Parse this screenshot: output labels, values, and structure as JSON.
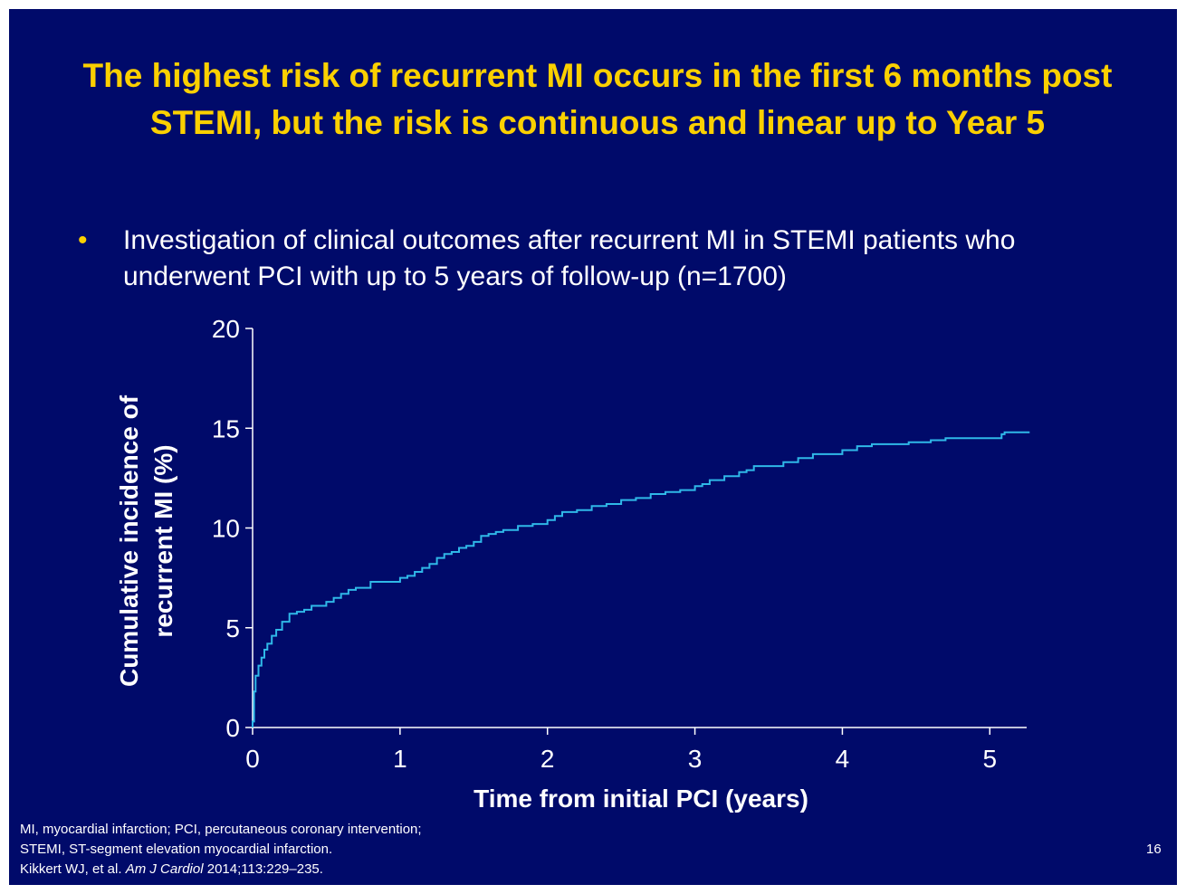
{
  "slide": {
    "title": "The highest risk of recurrent MI occurs in the first 6 months post STEMI, but the risk is continuous and linear up to Year 5",
    "bullet_symbol": "•",
    "bullet_text": "Investigation of clinical outcomes after recurrent MI in STEMI patients who underwent PCI with up to 5 years of follow-up (n=1700)",
    "footnote_line1": "MI, myocardial infarction; PCI, percutaneous coronary intervention;",
    "footnote_line2": "STEMI, ST-segment elevation myocardial infarction.",
    "citation_authors": "Kikkert WJ, et al.",
    "citation_journal": "Am J Cardiol",
    "citation_details": "2014;113:229–235.",
    "page_number": "16"
  },
  "colors": {
    "background": "#000a6a",
    "title": "#fbd000",
    "text": "#ffffff",
    "curve": "#2fb8e8"
  },
  "chart_data": {
    "type": "line",
    "step": true,
    "xlabel": "Time from initial PCI (years)",
    "ylabel_line1": "Cumulative incidence of",
    "ylabel_line2": "recurrent MI (%)",
    "xlim": [
      0,
      5.25
    ],
    "ylim": [
      0,
      20
    ],
    "xticks": [
      0,
      1,
      2,
      3,
      4,
      5
    ],
    "yticks": [
      0,
      5,
      10,
      15,
      20
    ],
    "grid": false,
    "series": [
      {
        "x": [
          0,
          0.01,
          0.02,
          0.04,
          0.06,
          0.08,
          0.1,
          0.13,
          0.16,
          0.2,
          0.25,
          0.3,
          0.35,
          0.4,
          0.5,
          0.55,
          0.6,
          0.65,
          0.7,
          0.75,
          0.8,
          0.9,
          1.0,
          1.05,
          1.1,
          1.15,
          1.2,
          1.25,
          1.3,
          1.35,
          1.4,
          1.45,
          1.5,
          1.55,
          1.6,
          1.65,
          1.7,
          1.8,
          1.9,
          2.0,
          2.05,
          2.1,
          2.2,
          2.3,
          2.4,
          2.5,
          2.6,
          2.7,
          2.8,
          2.9,
          3.0,
          3.05,
          3.1,
          3.2,
          3.3,
          3.35,
          3.4,
          3.5,
          3.6,
          3.7,
          3.8,
          3.9,
          4.0,
          4.1,
          4.2,
          4.3,
          4.45,
          4.6,
          4.7,
          4.8,
          4.9,
          5.0,
          5.08,
          5.1,
          5.15,
          5.27
        ],
        "y": [
          0.3,
          1.8,
          2.6,
          3.1,
          3.5,
          3.9,
          4.2,
          4.6,
          4.9,
          5.3,
          5.7,
          5.8,
          5.9,
          6.1,
          6.3,
          6.5,
          6.7,
          6.9,
          7.0,
          7.0,
          7.3,
          7.3,
          7.5,
          7.6,
          7.8,
          8.0,
          8.2,
          8.5,
          8.7,
          8.8,
          9.0,
          9.1,
          9.3,
          9.6,
          9.7,
          9.8,
          9.9,
          10.1,
          10.2,
          10.4,
          10.6,
          10.8,
          10.9,
          11.1,
          11.2,
          11.4,
          11.5,
          11.7,
          11.8,
          11.9,
          12.1,
          12.2,
          12.4,
          12.6,
          12.8,
          12.9,
          13.1,
          13.1,
          13.3,
          13.5,
          13.7,
          13.7,
          13.9,
          14.1,
          14.2,
          14.2,
          14.3,
          14.4,
          14.5,
          14.5,
          14.5,
          14.5,
          14.7,
          14.8,
          14.8,
          14.8
        ]
      }
    ]
  }
}
